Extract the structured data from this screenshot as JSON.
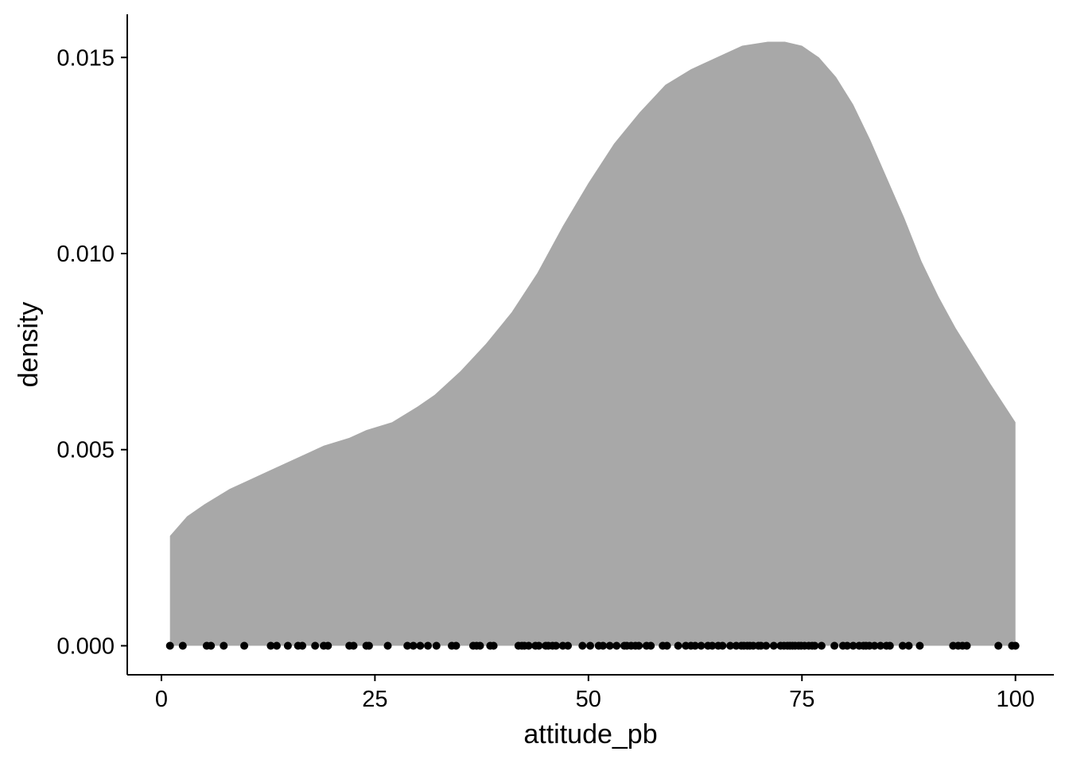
{
  "chart_data": {
    "type": "area",
    "title": "",
    "xlabel": "attitude_pb",
    "ylabel": "density",
    "xlim": [
      -4,
      104.5
    ],
    "ylim": [
      -0.00074,
      0.0161
    ],
    "x_ticks": [
      0,
      25,
      50,
      75,
      100
    ],
    "y_ticks": [
      0.0,
      0.005,
      0.01,
      0.015
    ],
    "x_tick_labels": [
      "0",
      "25",
      "50",
      "75",
      "100"
    ],
    "y_tick_labels": [
      "0.000",
      "0.005",
      "0.010",
      "0.015"
    ],
    "grid": false,
    "legend": "none",
    "fill_color": "#a8a8a8",
    "point_color": "#000000",
    "density_curve": {
      "x": [
        1,
        3,
        5,
        8,
        10,
        13,
        16,
        19,
        22,
        24,
        27,
        30,
        32,
        35,
        38,
        41,
        44,
        47,
        50,
        53,
        56,
        59,
        62,
        65,
        68,
        71,
        73,
        75,
        77,
        79,
        81,
        83,
        85,
        87,
        89,
        91,
        93,
        95,
        97,
        100
      ],
      "y": [
        0.0028,
        0.0033,
        0.0036,
        0.004,
        0.0042,
        0.0045,
        0.0048,
        0.0051,
        0.0053,
        0.0055,
        0.0057,
        0.0061,
        0.0064,
        0.007,
        0.0077,
        0.0085,
        0.0095,
        0.0107,
        0.0118,
        0.0128,
        0.0136,
        0.0143,
        0.0147,
        0.015,
        0.0153,
        0.0154,
        0.0154,
        0.0153,
        0.015,
        0.0145,
        0.0138,
        0.0129,
        0.0119,
        0.0109,
        0.0098,
        0.0089,
        0.0081,
        0.0074,
        0.0067,
        0.0057
      ]
    },
    "rug_points": [
      1,
      2.5,
      5.3,
      5.8,
      7.3,
      9.7,
      12.8,
      13.5,
      14.8,
      16,
      16.5,
      18,
      19,
      19.5,
      22,
      22.5,
      24,
      24.3,
      26.5,
      28.8,
      29.5,
      30.3,
      31.2,
      32.2,
      34,
      34.5,
      36.5,
      36.9,
      37.3,
      38.5,
      38.9,
      41.8,
      42.2,
      42.5,
      43,
      43.8,
      44.2,
      45,
      45.3,
      45.8,
      46.2,
      47,
      47.6,
      49.3,
      50.2,
      51.2,
      51.7,
      52.5,
      53.3,
      54.2,
      54.5,
      55,
      55.5,
      55.9,
      56.8,
      57.3,
      58.7,
      59.2,
      60.5,
      61.4,
      62,
      62.5,
      63.2,
      64,
      64.5,
      65.2,
      65.7,
      66.6,
      67.3,
      67.9,
      68.2,
      68.6,
      68.9,
      69.3,
      69.9,
      70.2,
      70.8,
      71.7,
      72.5,
      72.9,
      73.3,
      73.6,
      73.9,
      74.2,
      74.6,
      74.9,
      75.3,
      75.8,
      76.2,
      76.5,
      77.3,
      78.8,
      79.8,
      80.3,
      81,
      81.7,
      82.2,
      82.5,
      82.9,
      83.5,
      84.2,
      84.9,
      85.3,
      86.8,
      87.5,
      88.8,
      92.7,
      93.3,
      93.8,
      94.3,
      98,
      99.6,
      100
    ]
  }
}
